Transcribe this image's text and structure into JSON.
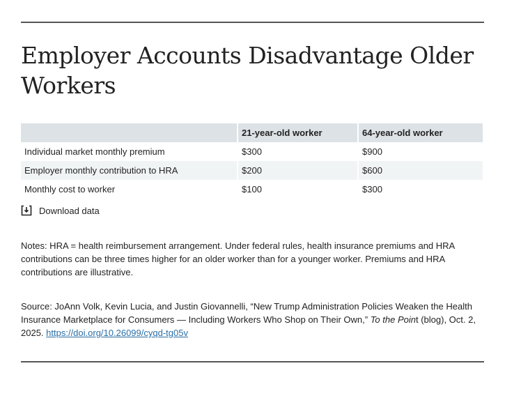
{
  "title": "Employer Accounts Disadvantage Older Workers",
  "table": {
    "headers": [
      "",
      "21-year-old worker",
      "64-year-old worker"
    ],
    "rows": [
      [
        "Individual market monthly premium",
        "$300",
        "$900"
      ],
      [
        "Employer monthly contribution to HRA",
        "$200",
        "$600"
      ],
      [
        "Monthly cost to worker",
        "$100",
        "$300"
      ]
    ]
  },
  "download_label": "Download data",
  "notes": "Notes: HRA = health reimbursement arrangement. Under federal rules, health insurance premiums and HRA contributions can be three times higher for an older worker than for a younger worker. Premiums and HRA contributions are illustrative.",
  "source": {
    "prefix": "Source: JoAnn Volk, Kevin Lucia, and Justin Giovannelli, “New Trump Administration Policies Weaken the Health Insurance Marketplace for Consumers — Including Workers Who Shop on Their Own,” ",
    "publication": "To the Poin",
    "publication_tail": "t",
    "suffix": " (blog), Oct. 2, 2025. ",
    "link": "https://doi.org/10.26099/cyqd-tg05v"
  }
}
